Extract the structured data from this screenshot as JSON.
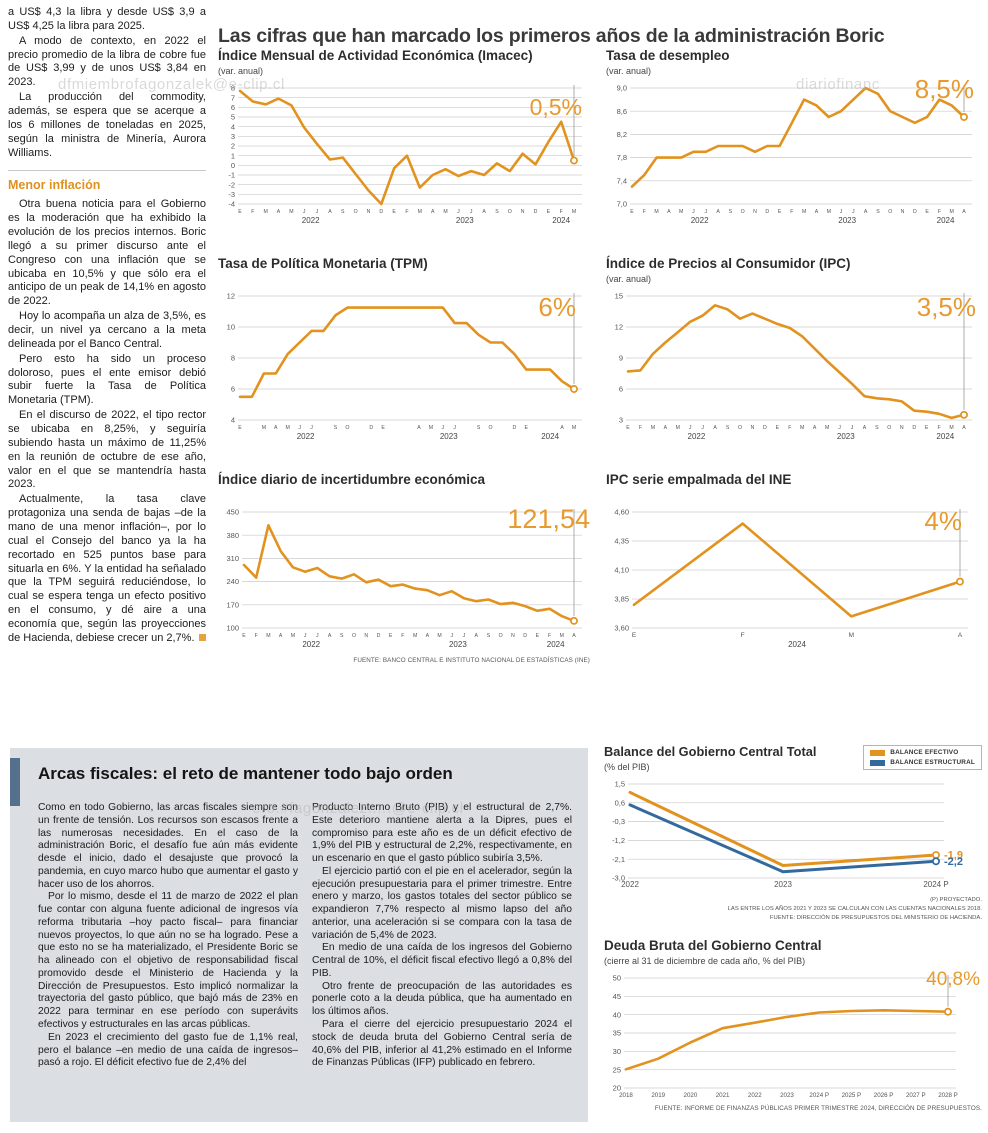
{
  "watermarks": {
    "top_left": "dfmiembrofagonzalek@e-clip.cl",
    "top_right": "diariofinanc",
    "bottom": "ero.#fagonzalez.....@e-clip.cl"
  },
  "article": {
    "paragraphs_top": [
      "a US$ 4,3 la libra y desde US$ 3,9 a US$ 4,25 la libra para 2025.",
      "A modo de contexto, en 2022 el precio promedio de la libra de cobre fue de US$ 3,99 y de unos US$ 3,84 en 2023.",
      "La producción del commodity, además, se espera que se acerque a los 6 millones de toneladas en 2025, según la ministra de Minería, Aurora Williams."
    ],
    "heading": "Menor inflación",
    "paragraphs_inflation": [
      "Otra buena noticia para el Gobierno es la moderación que ha exhibido la evolución de los precios internos. Boric llegó a su primer discurso ante el Congreso con una inflación que se ubicaba en 10,5% y que sólo era el anticipo de un peak de 14,1% en agosto de 2022.",
      "Hoy lo acompaña un alza de 3,5%, es decir, un nivel ya cercano a la meta delineada por el Banco Central.",
      "Pero esto ha sido un proceso doloroso, pues el ente emisor debió subir fuerte la Tasa de Política Monetaria (TPM).",
      "En el discurso de 2022, el tipo rector se ubicaba en 8,25%, y seguiría subiendo hasta un máximo de 11,25% en la reunión de octubre de ese año, valor en el que se mantendría hasta 2023.",
      "Actualmente, la tasa clave protagoniza una senda de bajas –de la mano de una menor inflación–, por lo cual el Consejo del banco ya la ha recortado en 525 puntos base para situarla en 6%. Y la entidad ha señalado que la TPM seguirá reduciéndose, lo cual se espera tenga un efecto positivo en el consumo, y dé aire a una economía que, según las proyecciones de Hacienda, debiese crecer un 2,7%."
    ]
  },
  "main_title": "Las cifras que han marcado los primeros años de la administración Boric",
  "chart_data": [
    {
      "type": "line",
      "title": "Índice Mensual de Actividad Económica (Imacec)",
      "subtitle": "(var. anual)",
      "highlight": "0,5%",
      "yticks": [
        "8",
        "7",
        "6",
        "5",
        "4",
        "3",
        "2",
        "1",
        "0",
        "-1",
        "-2",
        "-3",
        "-4"
      ],
      "xlabels": [
        "E",
        "F",
        "M",
        "A",
        "M",
        "J",
        "J",
        "A",
        "S",
        "O",
        "N",
        "D",
        "E",
        "F",
        "M",
        "A",
        "M",
        "J",
        "J",
        "A",
        "S",
        "O",
        "N",
        "D",
        "E",
        "F",
        "M"
      ],
      "years": [
        {
          "label": "2022",
          "from": 0,
          "to": 11
        },
        {
          "label": "2023",
          "from": 12,
          "to": 23
        },
        {
          "label": "2024",
          "from": 24,
          "to": 26
        }
      ],
      "series": [
        {
          "name": "Imacec",
          "color": "#E2921E",
          "values": [
            7.7,
            6.6,
            6.3,
            6.9,
            6.2,
            3.9,
            2.2,
            0.6,
            0.8,
            -0.9,
            -2.6,
            -4.0,
            -0.3,
            1.0,
            -2.3,
            -1.0,
            -0.4,
            -1.1,
            -0.6,
            -1.0,
            0.2,
            -0.6,
            1.2,
            0.1,
            2.4,
            4.5,
            0.5
          ]
        }
      ]
    },
    {
      "type": "line",
      "title": "Tasa de desempleo",
      "subtitle": "(var. anual)",
      "highlight": "8,5%",
      "yticks": [
        "9,0",
        "8,6",
        "8,2",
        "7,8",
        "7,4",
        "7,0"
      ],
      "xlabels": [
        "E",
        "F",
        "M",
        "A",
        "M",
        "J",
        "J",
        "A",
        "S",
        "O",
        "N",
        "D",
        "E",
        "F",
        "M",
        "A",
        "M",
        "J",
        "J",
        "A",
        "S",
        "O",
        "N",
        "D",
        "E",
        "F",
        "M",
        "A"
      ],
      "years": [
        {
          "label": "2022",
          "from": 0,
          "to": 11
        },
        {
          "label": "2023",
          "from": 12,
          "to": 23
        },
        {
          "label": "2024",
          "from": 24,
          "to": 27
        }
      ],
      "series": [
        {
          "name": "Tasa de desempleo",
          "color": "#E2921E",
          "values": [
            7.3,
            7.5,
            7.8,
            7.8,
            7.8,
            7.9,
            7.9,
            8.0,
            8.0,
            8.0,
            7.9,
            8.0,
            8.0,
            8.4,
            8.8,
            8.7,
            8.5,
            8.6,
            8.8,
            9.0,
            8.9,
            8.6,
            8.5,
            8.4,
            8.5,
            8.8,
            8.7,
            8.5
          ]
        }
      ]
    },
    {
      "type": "line",
      "title": "Tasa de Política Monetaria (TPM)",
      "subtitle": "",
      "highlight": "6%",
      "yticks": [
        "12",
        "10",
        "8",
        "6",
        "4"
      ],
      "xlabels": [
        "E",
        "",
        "M",
        "A",
        "M",
        "J",
        "J",
        "",
        "S",
        "O",
        "",
        "D",
        "E",
        "",
        "",
        "A",
        "M",
        "J",
        "J",
        "",
        "S",
        "O",
        "",
        "D",
        "E",
        "",
        "",
        "A",
        "M"
      ],
      "years": [
        {
          "label": "2022",
          "from": 0,
          "to": 11
        },
        {
          "label": "2023",
          "from": 12,
          "to": 23
        },
        {
          "label": "2024",
          "from": 24,
          "to": 28
        }
      ],
      "series": [
        {
          "name": "TPM",
          "color": "#E2921E",
          "values": [
            5.5,
            5.5,
            7.0,
            7.0,
            8.25,
            9.0,
            9.75,
            9.75,
            10.75,
            11.25,
            11.25,
            11.25,
            11.25,
            11.25,
            11.25,
            11.25,
            11.25,
            11.25,
            10.25,
            10.25,
            9.5,
            9.0,
            9.0,
            8.25,
            7.25,
            7.25,
            7.25,
            6.5,
            6.0
          ]
        }
      ]
    },
    {
      "type": "line",
      "title": "Índice de Precios al Consumidor (IPC)",
      "subtitle": "(var. anual)",
      "highlight": "3,5%",
      "yticks": [
        "15",
        "12",
        "9",
        "6",
        "3"
      ],
      "xlabels": [
        "E",
        "F",
        "M",
        "A",
        "M",
        "J",
        "J",
        "A",
        "S",
        "O",
        "N",
        "D",
        "E",
        "F",
        "M",
        "A",
        "M",
        "J",
        "J",
        "A",
        "S",
        "O",
        "N",
        "D",
        "E",
        "F",
        "M",
        "A"
      ],
      "years": [
        {
          "label": "2022",
          "from": 0,
          "to": 11
        },
        {
          "label": "2023",
          "from": 12,
          "to": 23
        },
        {
          "label": "2024",
          "from": 24,
          "to": 27
        }
      ],
      "series": [
        {
          "name": "IPC",
          "color": "#E2921E",
          "values": [
            7.7,
            7.8,
            9.4,
            10.5,
            11.5,
            12.5,
            13.1,
            14.1,
            13.7,
            12.8,
            13.3,
            12.8,
            12.3,
            11.9,
            11.1,
            9.9,
            8.7,
            7.6,
            6.5,
            5.3,
            5.1,
            5.0,
            4.8,
            3.9,
            3.8,
            3.6,
            3.2,
            3.5
          ]
        }
      ]
    },
    {
      "type": "line",
      "title": "Índice diario de incertidumbre económica",
      "subtitle": "",
      "highlight": "121,54",
      "yticks": [
        "450",
        "380",
        "310",
        "240",
        "170",
        "100"
      ],
      "xlabels": [
        "E",
        "F",
        "M",
        "A",
        "M",
        "J",
        "J",
        "A",
        "S",
        "O",
        "N",
        "D",
        "E",
        "F",
        "M",
        "A",
        "M",
        "J",
        "J",
        "A",
        "S",
        "O",
        "N",
        "D",
        "E",
        "F",
        "M",
        "A"
      ],
      "years": [
        {
          "label": "2022",
          "from": 0,
          "to": 11
        },
        {
          "label": "2023",
          "from": 12,
          "to": 23
        },
        {
          "label": "2024",
          "from": 24,
          "to": 27
        }
      ],
      "series": [
        {
          "name": "Incertidumbre económica",
          "color": "#E2921E",
          "values": [
            290,
            252,
            410,
            332,
            283,
            270,
            281,
            256,
            249,
            262,
            238,
            246,
            226,
            231,
            219,
            214,
            199,
            211,
            190,
            181,
            186,
            172,
            176,
            166,
            152,
            158,
            136,
            121.54
          ]
        }
      ],
      "source": "FUENTE: BANCO CENTRAL E INSTITUTO NACIONAL DE ESTADÍSTICAS (INE)"
    },
    {
      "type": "line",
      "title": "IPC serie empalmada del INE",
      "subtitle": "",
      "highlight": "4%",
      "yticks": [
        "4,60",
        "4,35",
        "4,10",
        "3,85",
        "3,60"
      ],
      "xlabels": [
        "E",
        "F",
        "M",
        "A"
      ],
      "years": [
        {
          "label": "2024",
          "from": 0,
          "to": 3
        }
      ],
      "series": [
        {
          "name": "IPC serie empalmada",
          "color": "#E2921E",
          "values": [
            3.8,
            4.5,
            3.7,
            4.0
          ]
        }
      ]
    },
    {
      "type": "line",
      "title": "Balance del Gobierno Central Total",
      "subtitle": "(% del PIB)",
      "highlight": "",
      "guide": false,
      "yticks": [
        "1,5",
        "0,6",
        "-0,3",
        "-1,2",
        "-2,1",
        "-3,0"
      ],
      "xlabels": [
        "2022",
        "2023",
        "2024 P"
      ],
      "years": [],
      "series": [
        {
          "name": "BALANCE EFECTIVO",
          "color": "#E2921E",
          "values": [
            1.1,
            -2.4,
            -1.9
          ],
          "end_label": "-1,9"
        },
        {
          "name": "BALANCE ESTRUCTURAL",
          "color": "#33699E",
          "values": [
            0.5,
            -2.7,
            -2.2
          ],
          "end_label": "-2,2"
        }
      ],
      "notes": [
        "(P) PROYECTADO.",
        "LAS ENTRE LOS AÑOS 2021 Y 2023 SE CALCULAN  CON LAS CUENTAS NACIONALES 2018.",
        "FUENTE: DIRECCIÓN DE PRESUPUESTOS DEL MINISTERIO DE HACIENDA."
      ]
    },
    {
      "type": "line",
      "title": "Deuda Bruta del Gobierno Central",
      "subtitle": "(cierre al 31 de diciembre de cada año, % del PIB)",
      "highlight": "40,8%",
      "yticks": [
        "50",
        "45",
        "40",
        "35",
        "30",
        "25",
        "20"
      ],
      "xlabels": [
        "2018",
        "2019",
        "2020",
        "2021",
        "2022",
        "2023",
        "2024 P",
        "2025 P",
        "2026 P",
        "2027 P",
        "2028 P"
      ],
      "years": [],
      "series": [
        {
          "name": "Deuda bruta",
          "color": "#E2921E",
          "values": [
            25.1,
            28.0,
            32.4,
            36.3,
            37.8,
            39.4,
            40.6,
            41.0,
            41.2,
            41.0,
            40.8
          ]
        }
      ],
      "source": "FUENTE: INFORME DE FINANZAS PÚBLICAS PRIMER TRIMESTRE 2024, DIRECCIÓN DE PRESUPUESTOS."
    }
  ],
  "arcas": {
    "title": "Arcas fiscales: el reto de mantener todo bajo orden",
    "col1": [
      "Como en todo Gobierno, las arcas fiscales siempre son un frente de tensión. Los recursos son escasos frente a las numerosas necesidades. En el caso de la administración Boric, el desafío fue aún más evidente desde el inicio, dado el desajuste que provocó la pandemia, en cuyo marco hubo que aumentar el gasto y hacer uso de los ahorros.",
      "Por lo mismo, desde el 11 de marzo de 2022 el plan fue contar con alguna fuente adicional de ingresos vía reforma tributaria –hoy pacto fiscal– para financiar nuevos proyectos, lo que aún no se ha logrado. Pese a que esto no se ha materializado, el Presidente Boric se ha alineado con el objetivo de responsabilidad fiscal promovido desde el Ministerio de Hacienda y la Dirección de Presupuestos. Esto implicó normalizar la trayectoria del gasto público, que bajó más de 23% en 2022 para terminar en ese período con superávits efectivos y estructurales en las arcas públicas.",
      "En 2023 el crecimiento del gasto fue de 1,1% real, pero el balance –en medio de una caída de ingresos– pasó a rojo. El déficit efectivo fue de 2,4% del"
    ],
    "col2": [
      "Producto Interno Bruto (PIB) y el estructural de 2,7%. Este deterioro mantiene alerta a la Dipres, pues el compromiso para este año es de un déficit efectivo de 1,9% del PIB y estructural de 2,2%, respectivamente, en un escenario en que el gasto público subiría 3,5%.",
      "El ejercicio partió con el pie en el acelerador, según la ejecución presupuestaria para el primer trimestre. Entre enero y marzo, los gastos totales del sector público se expandieron 7,7% respecto al mismo lapso del año anterior, una aceleración si se compara con la tasa de variación de 5,4% de 2023.",
      "En medio de una caída de los ingresos del Gobierno Central de 10%, el déficit fiscal efectivo llegó a 0,8% del PIB.",
      "Otro frente de preocupación de las autoridades es ponerle coto a la deuda pública, que ha aumentado en los últimos años.",
      "Para el cierre del ejercicio presupuestario 2024 el stock de deuda bruta del Gobierno Central sería de 40,6% del PIB, inferior al 41,2% estimado en el Informe de Finanzas Públicas (IFP) publicado en febrero."
    ]
  }
}
